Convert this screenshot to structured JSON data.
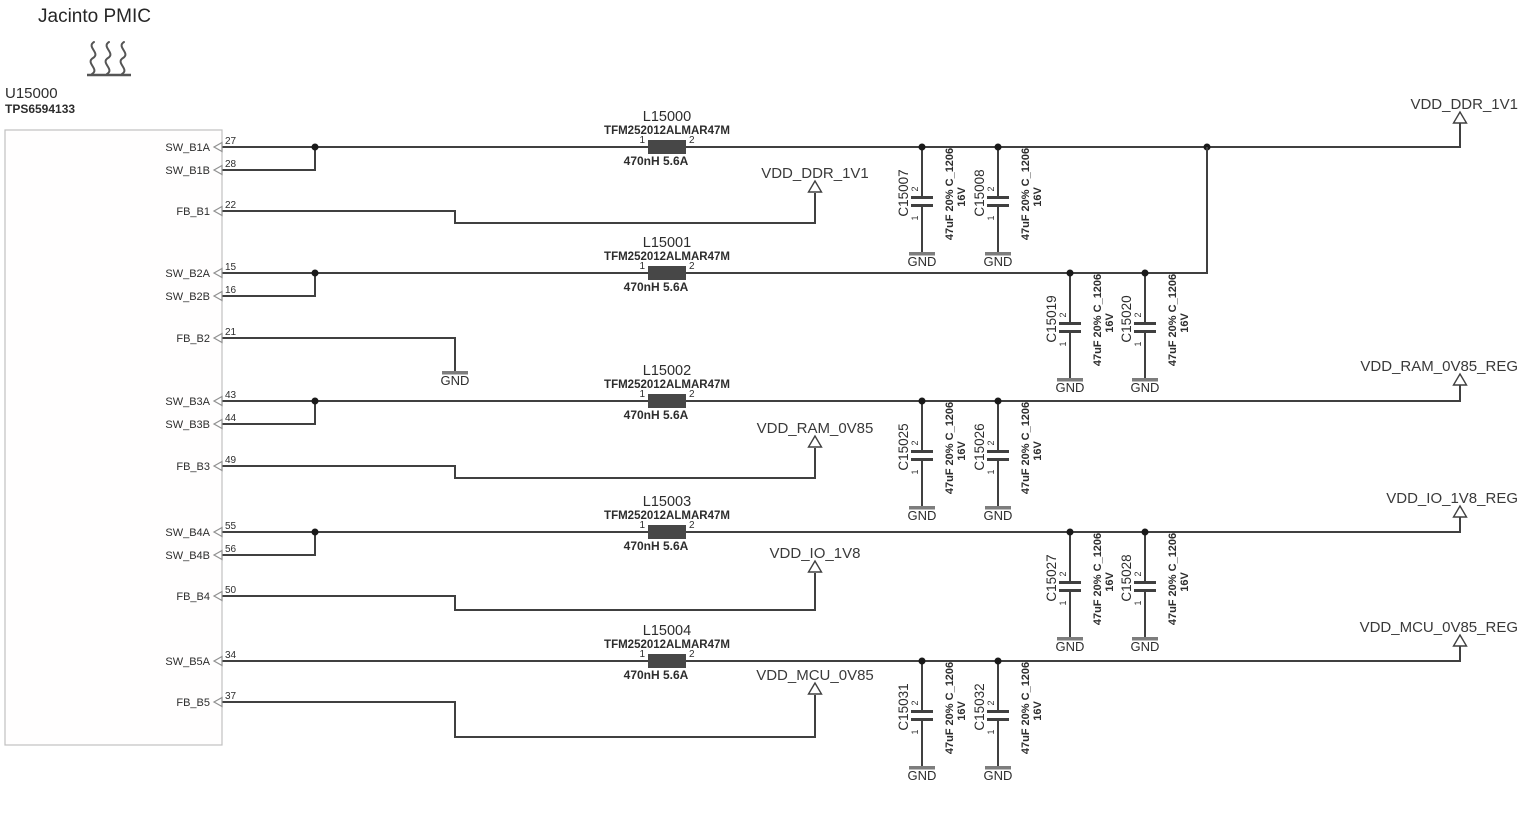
{
  "title": "Jacinto PMIC",
  "ic": {
    "refdes": "U15000",
    "part": "TPS6594133",
    "pins": [
      {
        "name": "SW_B1A",
        "number": "27"
      },
      {
        "name": "SW_B1B",
        "number": "28"
      },
      {
        "name": "FB_B1",
        "number": "22"
      },
      {
        "name": "SW_B2A",
        "number": "15"
      },
      {
        "name": "SW_B2B",
        "number": "16"
      },
      {
        "name": "FB_B2",
        "number": "21"
      },
      {
        "name": "SW_B3A",
        "number": "43"
      },
      {
        "name": "SW_B3B",
        "number": "44"
      },
      {
        "name": "FB_B3",
        "number": "49"
      },
      {
        "name": "SW_B4A",
        "number": "55"
      },
      {
        "name": "SW_B4B",
        "number": "56"
      },
      {
        "name": "FB_B4",
        "number": "50"
      },
      {
        "name": "SW_B5A",
        "number": "34"
      },
      {
        "name": "FB_B5",
        "number": "37"
      }
    ]
  },
  "inductors": [
    {
      "refdes": "L15000",
      "part": "TFM252012ALMAR47M",
      "pin1": "1",
      "pin2": "2",
      "value": "470nH 5.6A"
    },
    {
      "refdes": "L15001",
      "part": "TFM252012ALMAR47M",
      "pin1": "1",
      "pin2": "2",
      "value": "470nH 5.6A"
    },
    {
      "refdes": "L15002",
      "part": "TFM252012ALMAR47M",
      "pin1": "1",
      "pin2": "2",
      "value": "470nH 5.6A"
    },
    {
      "refdes": "L15003",
      "part": "TFM252012ALMAR47M",
      "pin1": "1",
      "pin2": "2",
      "value": "470nH 5.6A"
    },
    {
      "refdes": "L15004",
      "part": "TFM252012ALMAR47M",
      "pin1": "1",
      "pin2": "2",
      "value": "470nH 5.6A"
    }
  ],
  "capacitors": [
    {
      "refdes": "C15007",
      "pin1": "1",
      "pin2": "2",
      "value": "47uF 20% C_1206",
      "voltage": "16V"
    },
    {
      "refdes": "C15008",
      "pin1": "1",
      "pin2": "2",
      "value": "47uF 20% C_1206",
      "voltage": "16V"
    },
    {
      "refdes": "C15019",
      "pin1": "1",
      "pin2": "2",
      "value": "47uF 20% C_1206",
      "voltage": "16V"
    },
    {
      "refdes": "C15020",
      "pin1": "1",
      "pin2": "2",
      "value": "47uF 20% C_1206",
      "voltage": "16V"
    },
    {
      "refdes": "C15025",
      "pin1": "1",
      "pin2": "2",
      "value": "47uF 20% C_1206",
      "voltage": "16V"
    },
    {
      "refdes": "C15026",
      "pin1": "1",
      "pin2": "2",
      "value": "47uF 20% C_1206",
      "voltage": "16V"
    },
    {
      "refdes": "C15027",
      "pin1": "1",
      "pin2": "2",
      "value": "47uF 20% C_1206",
      "voltage": "16V"
    },
    {
      "refdes": "C15028",
      "pin1": "1",
      "pin2": "2",
      "value": "47uF 20% C_1206",
      "voltage": "16V"
    },
    {
      "refdes": "C15031",
      "pin1": "1",
      "pin2": "2",
      "value": "47uF 20% C_1206",
      "voltage": "16V"
    },
    {
      "refdes": "C15032",
      "pin1": "1",
      "pin2": "2",
      "value": "47uF 20% C_1206",
      "voltage": "16V"
    }
  ],
  "net_labels": {
    "outputs": [
      "VDD_DDR_1V1",
      "VDD_RAM_0V85_REG",
      "VDD_IO_1V8_REG",
      "VDD_MCU_0V85_REG"
    ],
    "feedback": [
      "VDD_DDR_1V1",
      "VDD_RAM_0V85",
      "VDD_IO_1V8",
      "VDD_MCU_0V85"
    ]
  },
  "labels": {
    "gnd": "GND"
  },
  "colors": {
    "wire": "#404040",
    "inductor_body": "#474747",
    "junction": "#1a1a1a",
    "text": "#2d2d2d",
    "ic_border": "#c0c0c0",
    "gnd_bar": "#7d7d7d",
    "background": "#ffffff"
  }
}
